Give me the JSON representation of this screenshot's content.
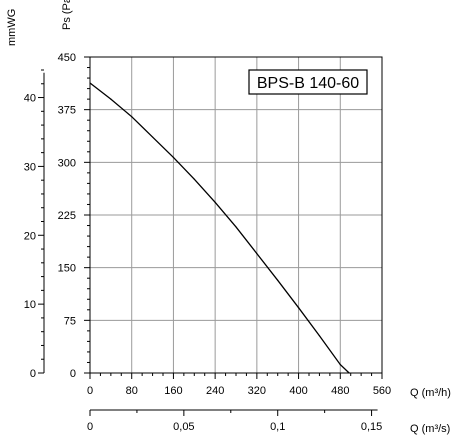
{
  "chart_data": {
    "type": "line",
    "title": "BPS-B 140-60",
    "x": [
      0,
      40,
      80,
      120,
      160,
      200,
      240,
      280,
      320,
      360,
      400,
      440,
      480,
      497
    ],
    "series": [
      {
        "values": [
          413,
          390,
          365,
          336,
          307,
          276,
          243,
          208,
          170,
          132,
          93,
          53,
          12,
          0
        ]
      }
    ],
    "xlabel": "Q (m³/h)",
    "ylabel": "Ps (Pa)",
    "xlim": [
      0,
      560
    ],
    "ylim": [
      0,
      450
    ],
    "xticks": [
      0,
      80,
      160,
      240,
      320,
      400,
      480,
      560
    ],
    "yticks": [
      0,
      75,
      150,
      225,
      300,
      375,
      450
    ],
    "secondary_x": {
      "label": "Q (m³/s)",
      "ticks": [
        "0",
        "0,05",
        "0,1",
        "0,15"
      ],
      "values": [
        0,
        0.05,
        0.1,
        0.15
      ]
    },
    "secondary_y": {
      "label": "mmWG",
      "ticks": [
        "0",
        "10",
        "20",
        "30",
        "40"
      ],
      "values": [
        0,
        10,
        20,
        30,
        40
      ]
    },
    "grid": true
  }
}
